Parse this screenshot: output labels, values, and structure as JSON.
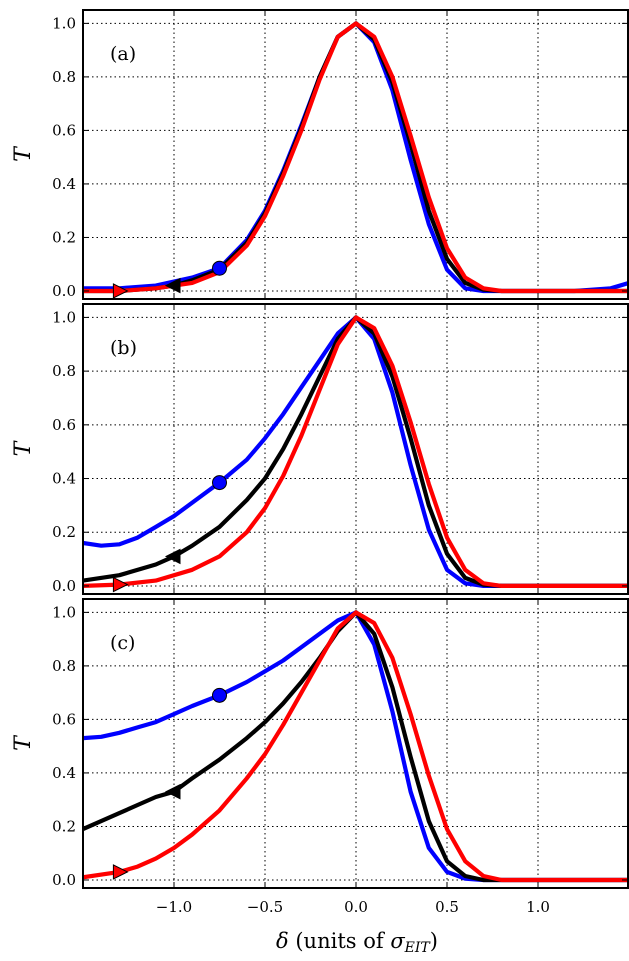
{
  "chart_data": {
    "type": "line",
    "xlabel_prefix": "δ",
    "xlabel_text": " (units of ",
    "xlabel_sigma": "σ",
    "xlabel_sub": "EIT",
    "xlabel_suffix": ")",
    "xlim": [
      -1.5,
      1.5
    ],
    "xticks": [
      -1.0,
      -0.5,
      0.0,
      0.5,
      1.0
    ],
    "xtick_labels": [
      "−1.0",
      "−0.5",
      "0.0",
      "0.5",
      "1.0"
    ],
    "ylim": [
      -0.03,
      1.05
    ],
    "yticks": [
      0.0,
      0.2,
      0.4,
      0.6,
      0.8,
      1.0
    ],
    "ytick_labels": [
      "0.0",
      "0.2",
      "0.4",
      "0.6",
      "0.8",
      "1.0"
    ],
    "grid": true,
    "colors": {
      "blue": "#0000ff",
      "black": "#000000",
      "red": "#ff0000"
    },
    "panels": [
      {
        "label": "(a)",
        "ylabel": "T",
        "series": [
          {
            "color": "blue",
            "x": [
              -1.5,
              -1.3,
              -1.1,
              -0.9,
              -0.75,
              -0.6,
              -0.5,
              -0.4,
              -0.3,
              -0.2,
              -0.1,
              0.0,
              0.1,
              0.2,
              0.3,
              0.4,
              0.5,
              0.6,
              0.7,
              0.8,
              0.9,
              1.0,
              1.2,
              1.4,
              1.5
            ],
            "y": [
              0.01,
              0.01,
              0.02,
              0.05,
              0.085,
              0.19,
              0.3,
              0.45,
              0.62,
              0.8,
              0.95,
              1.0,
              0.93,
              0.75,
              0.49,
              0.25,
              0.08,
              0.01,
              0.0,
              0.0,
              0.0,
              0.0,
              0.0,
              0.01,
              0.03
            ],
            "marker": {
              "shape": "circle",
              "x": -0.75,
              "y": 0.085
            }
          },
          {
            "color": "black",
            "x": [
              -1.5,
              -1.3,
              -1.1,
              -1.0,
              -0.9,
              -0.75,
              -0.6,
              -0.5,
              -0.4,
              -0.3,
              -0.2,
              -0.1,
              0.0,
              0.1,
              0.2,
              0.3,
              0.4,
              0.5,
              0.6,
              0.7,
              0.8,
              0.9,
              1.0,
              1.2,
              1.5
            ],
            "y": [
              0.0,
              0.0,
              0.01,
              0.02,
              0.04,
              0.08,
              0.18,
              0.29,
              0.44,
              0.61,
              0.8,
              0.95,
              1.0,
              0.94,
              0.78,
              0.55,
              0.3,
              0.12,
              0.03,
              0.005,
              0.0,
              0.0,
              0.0,
              0.0,
              0.0
            ],
            "marker": {
              "shape": "triangle-left",
              "x": -1.0,
              "y": 0.02
            }
          },
          {
            "color": "red",
            "x": [
              -1.5,
              -1.3,
              -1.1,
              -0.9,
              -0.75,
              -0.6,
              -0.5,
              -0.4,
              -0.3,
              -0.2,
              -0.1,
              0.0,
              0.1,
              0.2,
              0.3,
              0.4,
              0.5,
              0.6,
              0.7,
              0.8,
              0.9,
              1.0,
              1.2,
              1.5
            ],
            "y": [
              0.0,
              0.0,
              0.01,
              0.03,
              0.07,
              0.17,
              0.28,
              0.43,
              0.6,
              0.79,
              0.95,
              1.0,
              0.95,
              0.8,
              0.58,
              0.35,
              0.16,
              0.05,
              0.01,
              0.0,
              0.0,
              0.0,
              0.0,
              0.0
            ],
            "marker": {
              "shape": "triangle-right",
              "x": -1.3,
              "y": 0.0
            }
          }
        ]
      },
      {
        "label": "(b)",
        "ylabel": "T",
        "series": [
          {
            "color": "blue",
            "x": [
              -1.5,
              -1.4,
              -1.3,
              -1.2,
              -1.1,
              -1.0,
              -0.9,
              -0.75,
              -0.6,
              -0.5,
              -0.4,
              -0.3,
              -0.2,
              -0.1,
              0.0,
              0.1,
              0.2,
              0.3,
              0.4,
              0.5,
              0.6,
              0.7,
              0.8,
              1.0,
              1.5
            ],
            "y": [
              0.16,
              0.15,
              0.155,
              0.18,
              0.22,
              0.26,
              0.31,
              0.385,
              0.47,
              0.55,
              0.64,
              0.74,
              0.84,
              0.94,
              1.0,
              0.92,
              0.72,
              0.45,
              0.21,
              0.06,
              0.01,
              0.0,
              0.0,
              0.0,
              0.0
            ],
            "marker": {
              "shape": "circle",
              "x": -0.75,
              "y": 0.385
            }
          },
          {
            "color": "black",
            "x": [
              -1.5,
              -1.3,
              -1.1,
              -1.0,
              -0.9,
              -0.75,
              -0.6,
              -0.5,
              -0.4,
              -0.3,
              -0.2,
              -0.1,
              0.0,
              0.1,
              0.2,
              0.3,
              0.4,
              0.5,
              0.6,
              0.7,
              0.8,
              1.0,
              1.5
            ],
            "y": [
              0.02,
              0.04,
              0.08,
              0.11,
              0.15,
              0.22,
              0.32,
              0.4,
              0.51,
              0.64,
              0.78,
              0.92,
              1.0,
              0.94,
              0.78,
              0.55,
              0.3,
              0.12,
              0.03,
              0.005,
              0.0,
              0.0,
              0.0
            ],
            "marker": {
              "shape": "triangle-left",
              "x": -1.0,
              "y": 0.11
            }
          },
          {
            "color": "red",
            "x": [
              -1.5,
              -1.3,
              -1.1,
              -0.9,
              -0.75,
              -0.6,
              -0.5,
              -0.4,
              -0.3,
              -0.2,
              -0.1,
              0.0,
              0.1,
              0.2,
              0.3,
              0.4,
              0.5,
              0.6,
              0.7,
              0.8,
              0.9,
              1.0,
              1.5
            ],
            "y": [
              0.0,
              0.005,
              0.02,
              0.06,
              0.11,
              0.2,
              0.29,
              0.41,
              0.56,
              0.73,
              0.9,
              1.0,
              0.96,
              0.82,
              0.61,
              0.38,
              0.18,
              0.06,
              0.01,
              0.0,
              0.0,
              0.0,
              0.0
            ],
            "marker": {
              "shape": "triangle-right",
              "x": -1.3,
              "y": 0.005
            }
          }
        ]
      },
      {
        "label": "(c)",
        "ylabel": "T",
        "series": [
          {
            "color": "blue",
            "x": [
              -1.5,
              -1.4,
              -1.3,
              -1.2,
              -1.1,
              -1.0,
              -0.9,
              -0.75,
              -0.6,
              -0.5,
              -0.4,
              -0.3,
              -0.2,
              -0.1,
              0.0,
              0.1,
              0.2,
              0.3,
              0.4,
              0.5,
              0.6,
              0.7,
              0.8,
              1.0,
              1.5
            ],
            "y": [
              0.53,
              0.535,
              0.55,
              0.57,
              0.59,
              0.62,
              0.65,
              0.69,
              0.74,
              0.78,
              0.82,
              0.87,
              0.92,
              0.97,
              1.0,
              0.88,
              0.63,
              0.33,
              0.12,
              0.03,
              0.005,
              0.0,
              0.0,
              0.0,
              0.0
            ],
            "marker": {
              "shape": "circle",
              "x": -0.75,
              "y": 0.69
            }
          },
          {
            "color": "black",
            "x": [
              -1.5,
              -1.4,
              -1.3,
              -1.2,
              -1.1,
              -1.0,
              -0.9,
              -0.75,
              -0.6,
              -0.5,
              -0.4,
              -0.3,
              -0.2,
              -0.1,
              0.0,
              0.1,
              0.2,
              0.3,
              0.4,
              0.5,
              0.6,
              0.7,
              0.8,
              1.0,
              1.5
            ],
            "y": [
              0.19,
              0.22,
              0.25,
              0.28,
              0.31,
              0.33,
              0.38,
              0.45,
              0.53,
              0.59,
              0.66,
              0.74,
              0.83,
              0.93,
              1.0,
              0.92,
              0.72,
              0.46,
              0.22,
              0.07,
              0.015,
              0.0,
              0.0,
              0.0,
              0.0
            ],
            "marker": {
              "shape": "triangle-left",
              "x": -1.0,
              "y": 0.33
            }
          },
          {
            "color": "red",
            "x": [
              -1.5,
              -1.3,
              -1.2,
              -1.1,
              -1.0,
              -0.9,
              -0.75,
              -0.6,
              -0.5,
              -0.4,
              -0.3,
              -0.2,
              -0.1,
              0.0,
              0.1,
              0.2,
              0.3,
              0.4,
              0.5,
              0.6,
              0.7,
              0.8,
              0.9,
              1.0,
              1.5
            ],
            "y": [
              0.01,
              0.03,
              0.05,
              0.08,
              0.12,
              0.17,
              0.26,
              0.38,
              0.47,
              0.58,
              0.7,
              0.82,
              0.94,
              1.0,
              0.96,
              0.83,
              0.62,
              0.39,
              0.19,
              0.07,
              0.015,
              0.0,
              0.0,
              0.0,
              0.0
            ],
            "marker": {
              "shape": "triangle-right",
              "x": -1.3,
              "y": 0.03
            }
          }
        ]
      }
    ]
  }
}
